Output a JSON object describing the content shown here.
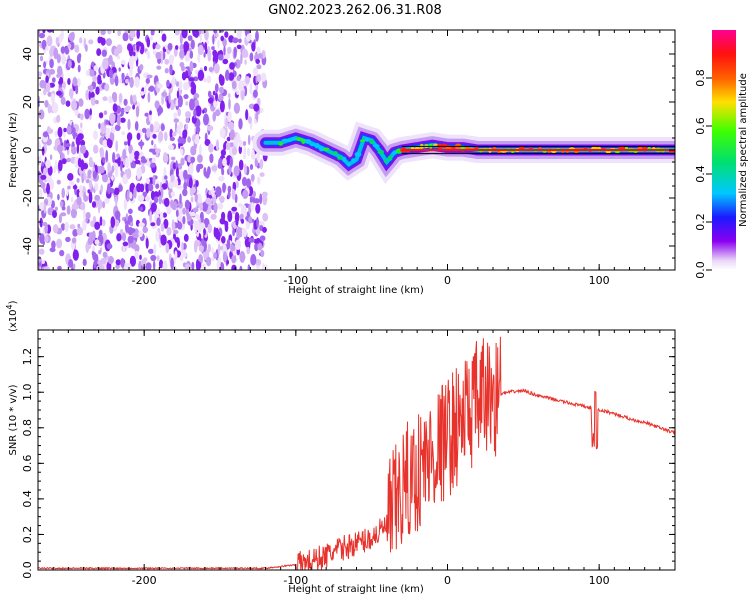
{
  "title": "GN02.2023.262.06.31.R08",
  "chart_data": [
    {
      "type": "heatmap",
      "xlabel": "Height of straight line (km)",
      "ylabel": "Frequency (Hz)",
      "xlim": [
        -270,
        150
      ],
      "ylim": [
        -50,
        50
      ],
      "x_ticks": [
        -200,
        -100,
        0,
        100
      ],
      "y_ticks": [
        -40,
        -20,
        0,
        20,
        40
      ],
      "colorbar": {
        "label": "Normalized spectral amplitude",
        "range": [
          0.0,
          1.0
        ],
        "ticks": [
          0.0,
          0.2,
          0.4,
          0.6,
          0.8
        ]
      },
      "ridge": {
        "x": [
          -120,
          -110,
          -100,
          -90,
          -80,
          -70,
          -65,
          -60,
          -55,
          -50,
          -45,
          -40,
          -35,
          -30,
          -20,
          -10,
          0,
          10,
          20,
          30,
          40,
          60,
          80,
          100,
          120,
          150
        ],
        "y": [
          3,
          3,
          5,
          3,
          0,
          -3,
          -6,
          -4,
          5,
          4,
          0,
          -5,
          -1,
          0,
          1,
          2,
          1,
          1,
          0,
          0,
          0,
          0,
          0,
          0,
          0,
          0
        ]
      },
      "noise_region_x": [
        -270,
        -120
      ]
    },
    {
      "type": "line",
      "xlabel": "Height of straight line (km)",
      "ylabel": "SNR (10 * v/v)",
      "y_scale_label": "(x10",
      "y_scale_exp": "4",
      "y_scale_close": ")",
      "xlim": [
        -270,
        150
      ],
      "ylim": [
        0,
        1.35
      ],
      "x_ticks": [
        -200,
        -100,
        0,
        100
      ],
      "y_ticks": [
        "0.0",
        "0.2",
        "0.4",
        "0.6",
        "0.8",
        "1.0",
        "1.2"
      ],
      "series": [
        {
          "color": "#e8332c",
          "x": [
            -270,
            -200,
            -120,
            -100,
            -90,
            -80,
            -70,
            -60,
            -50,
            -40,
            -35,
            -30,
            -25,
            -20,
            -15,
            -10,
            -5,
            0,
            5,
            10,
            15,
            20,
            25,
            30,
            40,
            50,
            60,
            70,
            80,
            90,
            95,
            98,
            100,
            110,
            120,
            130,
            140,
            150
          ],
          "y": [
            0.01,
            0.01,
            0.01,
            0.03,
            0.05,
            0.08,
            0.12,
            0.15,
            0.18,
            0.25,
            0.35,
            0.45,
            0.5,
            0.55,
            0.6,
            0.65,
            0.7,
            0.75,
            0.8,
            0.85,
            0.9,
            0.95,
            0.97,
            0.98,
            1.0,
            1.01,
            0.98,
            0.96,
            0.94,
            0.92,
            0.91,
            0.9,
            0.9,
            0.88,
            0.85,
            0.83,
            0.8,
            0.77
          ]
        }
      ]
    }
  ]
}
